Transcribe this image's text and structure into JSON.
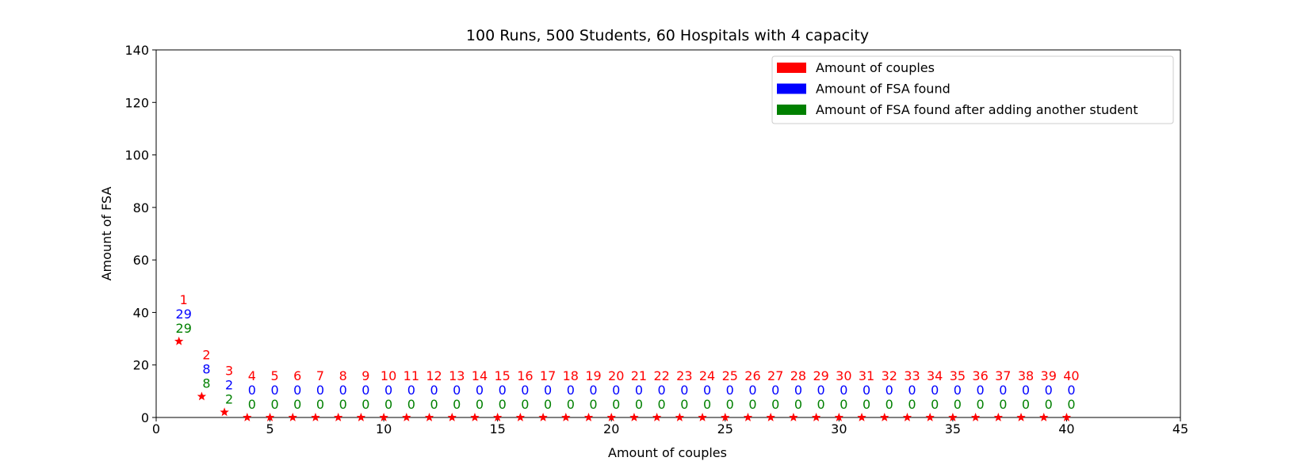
{
  "chart_data": {
    "type": "scatter",
    "title": "100 Runs, 500 Students, 60 Hospitals with 4 capacity",
    "xlabel": "Amount of couples",
    "ylabel": "Amount of FSA",
    "xlim": [
      0,
      45
    ],
    "ylim": [
      0,
      140
    ],
    "xticks": [
      0,
      5,
      10,
      15,
      20,
      25,
      30,
      35,
      40,
      45
    ],
    "yticks": [
      0,
      20,
      40,
      60,
      80,
      100,
      120,
      140
    ],
    "grid": false,
    "legend_position": "top-right",
    "marker": "star",
    "x": [
      1,
      2,
      3,
      4,
      5,
      6,
      7,
      8,
      9,
      10,
      11,
      12,
      13,
      14,
      15,
      16,
      17,
      18,
      19,
      20,
      21,
      22,
      23,
      24,
      25,
      26,
      27,
      28,
      29,
      30,
      31,
      32,
      33,
      34,
      35,
      36,
      37,
      38,
      39,
      40
    ],
    "series": [
      {
        "name": "Amount of couples",
        "color": "#ff0000",
        "values": [
          1,
          2,
          3,
          4,
          5,
          6,
          7,
          8,
          9,
          10,
          11,
          12,
          13,
          14,
          15,
          16,
          17,
          18,
          19,
          20,
          21,
          22,
          23,
          24,
          25,
          26,
          27,
          28,
          29,
          30,
          31,
          32,
          33,
          34,
          35,
          36,
          37,
          38,
          39,
          40
        ]
      },
      {
        "name": "Amount of FSA found",
        "color": "#0000ff",
        "values": [
          29,
          8,
          2,
          0,
          0,
          0,
          0,
          0,
          0,
          0,
          0,
          0,
          0,
          0,
          0,
          0,
          0,
          0,
          0,
          0,
          0,
          0,
          0,
          0,
          0,
          0,
          0,
          0,
          0,
          0,
          0,
          0,
          0,
          0,
          0,
          0,
          0,
          0,
          0,
          0
        ]
      },
      {
        "name": "Amount of FSA found after adding another student",
        "color": "#008000",
        "values": [
          29,
          8,
          2,
          0,
          0,
          0,
          0,
          0,
          0,
          0,
          0,
          0,
          0,
          0,
          0,
          0,
          0,
          0,
          0,
          0,
          0,
          0,
          0,
          0,
          0,
          0,
          0,
          0,
          0,
          0,
          0,
          0,
          0,
          0,
          0,
          0,
          0,
          0,
          0,
          0
        ]
      }
    ]
  }
}
